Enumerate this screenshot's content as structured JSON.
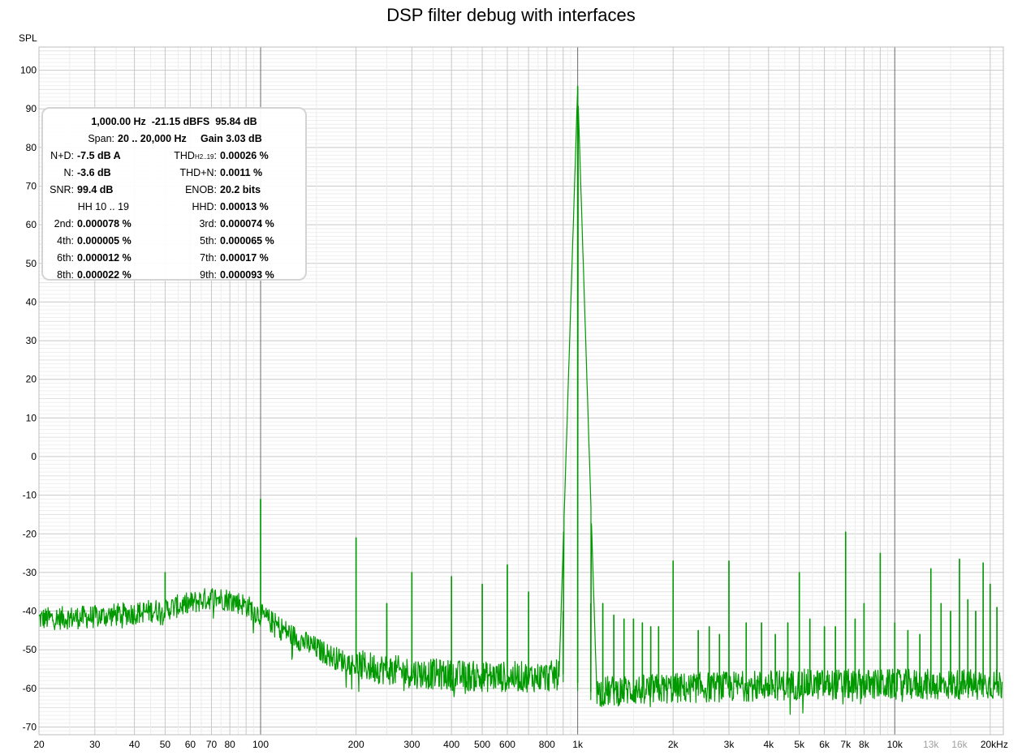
{
  "chart_data": {
    "type": "line",
    "title": "DSP filter debug with interfaces",
    "ylabel": "SPL",
    "xlabel": "",
    "x_scale": "log",
    "xlim": [
      20,
      22000
    ],
    "ylim": [
      -72,
      106
    ],
    "grid": true,
    "y_ticks": [
      100,
      90,
      80,
      70,
      60,
      50,
      40,
      30,
      20,
      10,
      0,
      -10,
      -20,
      -30,
      -40,
      -50,
      -60,
      -70
    ],
    "y_tick_labels": [
      "100",
      "90",
      "80",
      "70",
      "60",
      "50",
      "40",
      "30",
      "20",
      "10",
      "0",
      "-10",
      "-20",
      "-30",
      "-40",
      "-50",
      "-60",
      "-70"
    ],
    "x_ticks": [
      {
        "value": 20,
        "label": "20",
        "dim": false
      },
      {
        "value": 30,
        "label": "30",
        "dim": false
      },
      {
        "value": 40,
        "label": "40",
        "dim": false
      },
      {
        "value": 50,
        "label": "50",
        "dim": false
      },
      {
        "value": 60,
        "label": "60",
        "dim": false
      },
      {
        "value": 70,
        "label": "70",
        "dim": false
      },
      {
        "value": 80,
        "label": "80",
        "dim": false
      },
      {
        "value": 100,
        "label": "100",
        "dim": false
      },
      {
        "value": 200,
        "label": "200",
        "dim": false
      },
      {
        "value": 300,
        "label": "300",
        "dim": false
      },
      {
        "value": 400,
        "label": "400",
        "dim": false
      },
      {
        "value": 500,
        "label": "500",
        "dim": false
      },
      {
        "value": 600,
        "label": "600",
        "dim": false
      },
      {
        "value": 800,
        "label": "800",
        "dim": false
      },
      {
        "value": 1000,
        "label": "1k",
        "dim": false
      },
      {
        "value": 2000,
        "label": "2k",
        "dim": false
      },
      {
        "value": 3000,
        "label": "3k",
        "dim": false
      },
      {
        "value": 4000,
        "label": "4k",
        "dim": false
      },
      {
        "value": 5000,
        "label": "5k",
        "dim": false
      },
      {
        "value": 6000,
        "label": "6k",
        "dim": false
      },
      {
        "value": 7000,
        "label": "7k",
        "dim": false
      },
      {
        "value": 8000,
        "label": "8k",
        "dim": false
      },
      {
        "value": 10000,
        "label": "10k",
        "dim": false
      },
      {
        "value": 13000,
        "label": "13k",
        "dim": true
      },
      {
        "value": 16000,
        "label": "16k",
        "dim": true
      },
      {
        "value": 20000,
        "label": "20kHz",
        "dim": false
      }
    ],
    "series": [
      {
        "color": "#009900",
        "noise_floor": [
          [
            20,
            -42
          ],
          [
            30,
            -41.5
          ],
          [
            40,
            -40.5
          ],
          [
            50,
            -39.5
          ],
          [
            60,
            -38
          ],
          [
            70,
            -36.5
          ],
          [
            80,
            -37
          ],
          [
            90,
            -38.5
          ],
          [
            100,
            -41
          ],
          [
            130,
            -47
          ],
          [
            170,
            -52
          ],
          [
            200,
            -54
          ],
          [
            300,
            -56
          ],
          [
            500,
            -57
          ],
          [
            800,
            -57
          ],
          [
            950,
            -56
          ],
          [
            1050,
            -61
          ],
          [
            2000,
            -60
          ],
          [
            5000,
            -59
          ],
          [
            10000,
            -59
          ],
          [
            20000,
            -59
          ],
          [
            22000,
            -59
          ]
        ],
        "peaks": [
          {
            "f": 50,
            "db": -30
          },
          {
            "f": 100,
            "db": -11
          },
          {
            "f": 200,
            "db": -21
          },
          {
            "f": 250,
            "db": -38
          },
          {
            "f": 300,
            "db": -30
          },
          {
            "f": 400,
            "db": -31
          },
          {
            "f": 500,
            "db": -33
          },
          {
            "f": 600,
            "db": -28
          },
          {
            "f": 700,
            "db": -35
          },
          {
            "f": 900,
            "db": -40
          },
          {
            "f": 1000,
            "db": 95.84
          },
          {
            "f": 1100,
            "db": -38
          },
          {
            "f": 1200,
            "db": -38
          },
          {
            "f": 1300,
            "db": -41
          },
          {
            "f": 1400,
            "db": -42
          },
          {
            "f": 1500,
            "db": -42
          },
          {
            "f": 1600,
            "db": -43
          },
          {
            "f": 1700,
            "db": -44
          },
          {
            "f": 1800,
            "db": -44
          },
          {
            "f": 2000,
            "db": -27
          },
          {
            "f": 2400,
            "db": -45
          },
          {
            "f": 2600,
            "db": -44
          },
          {
            "f": 2800,
            "db": -46
          },
          {
            "f": 3000,
            "db": -27
          },
          {
            "f": 3400,
            "db": -43
          },
          {
            "f": 3800,
            "db": -43
          },
          {
            "f": 4200,
            "db": -46
          },
          {
            "f": 4600,
            "db": -43
          },
          {
            "f": 5000,
            "db": -30
          },
          {
            "f": 5400,
            "db": -42
          },
          {
            "f": 6000,
            "db": -44
          },
          {
            "f": 6500,
            "db": -44
          },
          {
            "f": 7000,
            "db": -19.5
          },
          {
            "f": 7500,
            "db": -42
          },
          {
            "f": 8000,
            "db": -38
          },
          {
            "f": 9000,
            "db": -25
          },
          {
            "f": 10000,
            "db": -43
          },
          {
            "f": 11000,
            "db": -45
          },
          {
            "f": 12000,
            "db": -46
          },
          {
            "f": 13000,
            "db": -29
          },
          {
            "f": 14000,
            "db": -38
          },
          {
            "f": 15000,
            "db": -40
          },
          {
            "f": 16000,
            "db": -26.5
          },
          {
            "f": 17000,
            "db": -37
          },
          {
            "f": 18000,
            "db": -40
          },
          {
            "f": 19000,
            "db": -27.5
          },
          {
            "f": 20000,
            "db": -33
          },
          {
            "f": 21000,
            "db": -39
          }
        ]
      }
    ]
  },
  "stats": {
    "header_line": "1,000.00 Hz  -21.15 dBFS  95.84 dB",
    "span_label": "Span:",
    "span_value": "20 .. 20,000 Hz",
    "gain_value": "Gain 3.03 dB",
    "rows": [
      {
        "l_label": "N+D:",
        "l_value": "-7.5 dB A",
        "r_label_main": "THD",
        "r_label_sub": "H2..19",
        "r_label_end": ":",
        "r_value": "0.00026 %"
      },
      {
        "l_label": "N:",
        "l_value": "-3.6 dB",
        "r_label_main": "THD+N:",
        "r_label_sub": "",
        "r_label_end": "",
        "r_value": "0.0011 %"
      },
      {
        "l_label": "SNR:",
        "l_value": "99.4 dB",
        "r_label_main": "ENOB:",
        "r_label_sub": "",
        "r_label_end": "",
        "r_value": "20.2 bits"
      },
      {
        "l_label": "HH 10 .. 19",
        "l_value": "",
        "r_label_main": "HHD:",
        "r_label_sub": "",
        "r_label_end": "",
        "r_value": "0.00013 %"
      },
      {
        "l_label": "2nd:",
        "l_value": "0.000078 %",
        "r_label_main": "3rd:",
        "r_label_sub": "",
        "r_label_end": "",
        "r_value": "0.000074 %"
      },
      {
        "l_label": "4th:",
        "l_value": "0.000005 %",
        "r_label_main": "5th:",
        "r_label_sub": "",
        "r_label_end": "",
        "r_value": "0.000065 %"
      },
      {
        "l_label": "6th:",
        "l_value": "0.000012 %",
        "r_label_main": "7th:",
        "r_label_sub": "",
        "r_label_end": "",
        "r_value": "0.00017 %"
      },
      {
        "l_label": "8th:",
        "l_value": "0.000022 %",
        "r_label_main": "9th:",
        "r_label_sub": "",
        "r_label_end": "",
        "r_value": "0.000093 %"
      }
    ]
  }
}
